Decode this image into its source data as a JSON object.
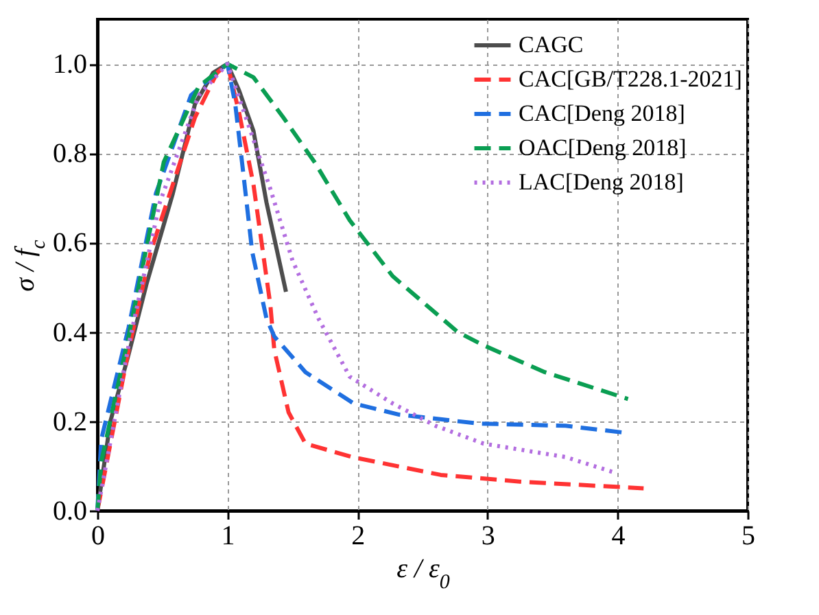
{
  "chart_data": {
    "type": "line",
    "xlabel": "ε / ε$_{0}$",
    "ylabel": "σ / f$_{c}$",
    "xlim": [
      0,
      5
    ],
    "xticks": [
      0,
      1,
      2,
      3,
      4,
      5
    ],
    "ylim": [
      0,
      1.1
    ],
    "yticks": [
      {
        "value": 0,
        "label": "0.0"
      },
      0.2,
      0.4,
      0.6,
      0.8,
      {
        "value": 1,
        "label": "1.0"
      }
    ],
    "grid": true,
    "legend": "top right",
    "marker": "none",
    "series": [
      {
        "name": "CAGC",
        "color": "#4d4d4d",
        "line_style": "solid",
        "x": [
          0,
          0.1,
          0.24,
          0.38,
          0.58,
          0.75,
          0.89,
          1,
          1.09,
          1.2,
          1.3,
          1.45
        ],
        "values": [
          0,
          0.2,
          0.35,
          0.51,
          0.71,
          0.91,
          0.98,
          1,
          0.94,
          0.85,
          0.69,
          0.49
        ]
      },
      {
        "name": "CAC[GB/T228.1-2021]",
        "color": "#ff3333",
        "line_style": "dashed",
        "x": [
          0,
          0.24,
          0.41,
          0.75,
          0.92,
          1,
          1.09,
          1.2,
          1.33,
          1.36,
          1.47,
          1.6,
          1.96,
          2.64,
          3.25,
          4.2
        ],
        "values": [
          0,
          0.36,
          0.58,
          0.88,
          0.98,
          1,
          0.89,
          0.73,
          0.46,
          0.36,
          0.22,
          0.15,
          0.12,
          0.08,
          0.065,
          0.05
        ]
      },
      {
        "name": "CAC[Deng 2018]",
        "color": "#1f6fe0",
        "line_style": "dashed",
        "x": [
          0,
          0.03,
          0.24,
          0.45,
          0.72,
          1,
          1.06,
          1.12,
          1.19,
          1.3,
          1.36,
          1.6,
          1.97,
          2.32,
          2.93,
          3.6,
          4.04
        ],
        "values": [
          0,
          0.16,
          0.41,
          0.71,
          0.93,
          1,
          0.91,
          0.76,
          0.58,
          0.43,
          0.39,
          0.31,
          0.24,
          0.215,
          0.195,
          0.19,
          0.175
        ]
      },
      {
        "name": "OAC[Deng 2018]",
        "color": "#0a9e52",
        "line_style": "dashed",
        "x": [
          0,
          0.03,
          0.24,
          0.51,
          0.78,
          1,
          1.2,
          1.43,
          1.67,
          1.94,
          2.27,
          2.77,
          2.97,
          3.44,
          4.08
        ],
        "values": [
          0,
          0.11,
          0.39,
          0.78,
          0.95,
          1,
          0.97,
          0.88,
          0.78,
          0.65,
          0.525,
          0.4,
          0.37,
          0.31,
          0.25
        ]
      },
      {
        "name": "LAC[Deng 2018]",
        "color": "#b36ee0",
        "line_style": "dotted",
        "x": [
          0,
          0.24,
          0.48,
          0.78,
          1,
          1.13,
          1.33,
          1.5,
          1.7,
          1.94,
          2.27,
          2.6,
          2.97,
          3.6,
          3.98
        ],
        "values": [
          0,
          0.37,
          0.69,
          0.93,
          1,
          0.89,
          0.72,
          0.56,
          0.43,
          0.3,
          0.24,
          0.19,
          0.15,
          0.12,
          0.085
        ]
      }
    ]
  }
}
